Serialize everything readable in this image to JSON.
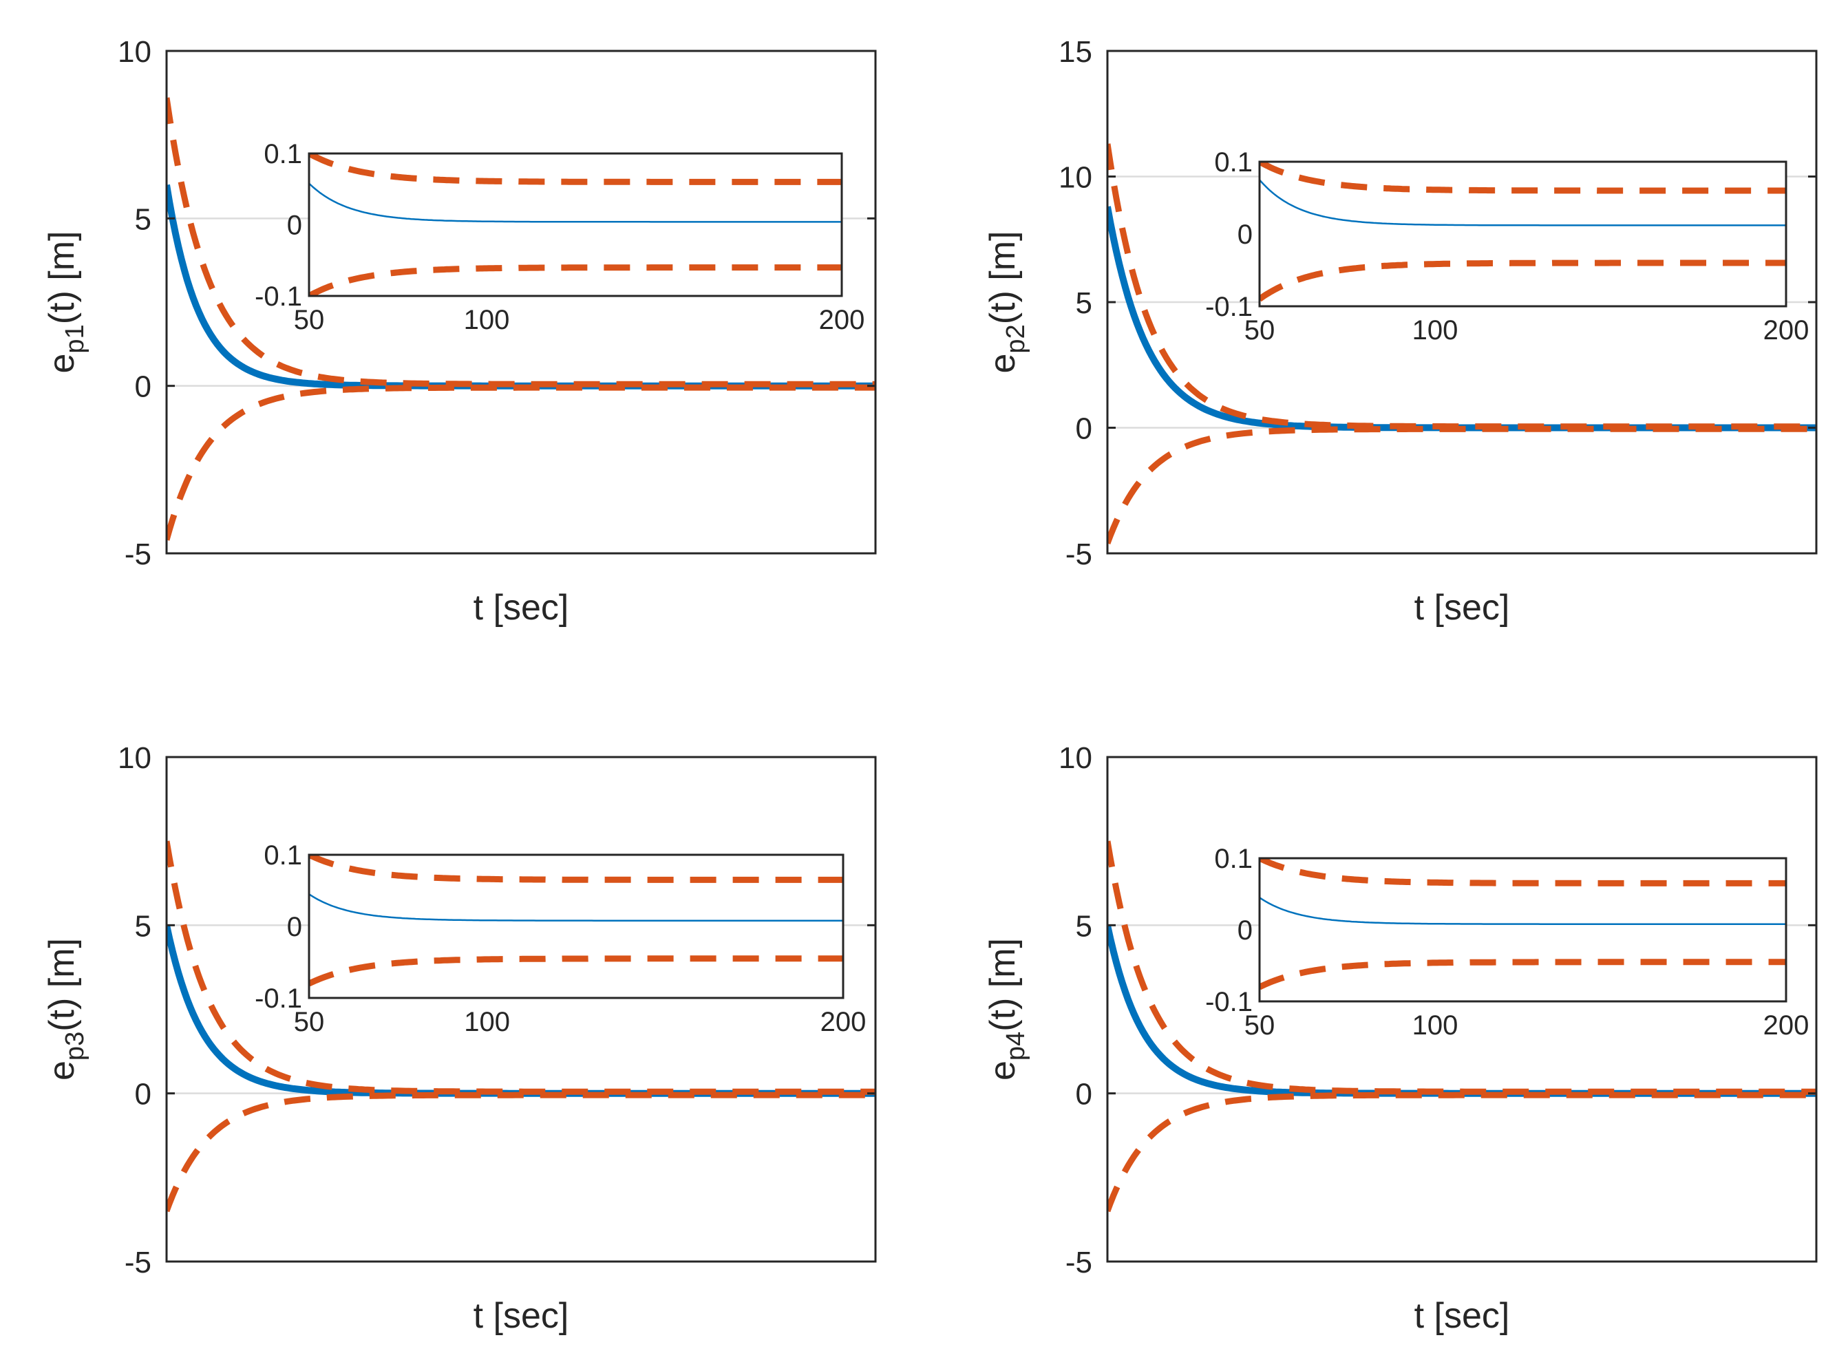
{
  "colors": {
    "actual": "#0072BD",
    "bound": "#D95319",
    "axis": "#262626",
    "grid": "#dcdcdc"
  },
  "chart_data": [
    {
      "type": "line",
      "name": "p1",
      "ylabel": {
        "main": "e",
        "sub": "p1",
        "rest": "(t) [m]"
      },
      "xlabel": "t [sec]",
      "xlim": [
        0,
        200
      ],
      "ylim": [
        -5,
        10
      ],
      "yticks": [
        -5,
        0,
        5,
        10
      ],
      "ytick_labels": [
        "-5",
        "0",
        "5",
        "10"
      ],
      "grid_y": [
        0,
        5
      ],
      "series": [
        {
          "name": "e_p1(t)",
          "kind": "actual",
          "initial": 6.0,
          "rate": 0.11
        },
        {
          "name": "upper bound",
          "kind": "bound",
          "initial": 8.6,
          "final": 0.05,
          "rate": 0.085
        },
        {
          "name": "lower bound",
          "kind": "bound",
          "initial": -4.6,
          "final": -0.05,
          "rate": 0.085
        }
      ],
      "inset": {
        "xlim": [
          50,
          200
        ],
        "ylim": [
          -0.1,
          0.1
        ],
        "xticks": [
          50,
          100,
          200
        ],
        "xtick_labels": [
          "50",
          "100",
          "200"
        ],
        "yticks": [
          -0.1,
          0,
          0.1
        ],
        "ytick_labels": [
          "-0.1",
          "0",
          "0.1"
        ],
        "actual": {
          "start": 0.058,
          "final": 0.004
        },
        "upper": {
          "start": 0.1,
          "final": 0.06
        },
        "lower": {
          "start": -0.1,
          "final": -0.06
        }
      }
    },
    {
      "type": "line",
      "name": "p2",
      "ylabel": {
        "main": "e",
        "sub": "p2",
        "rest": "(t) [m]"
      },
      "xlabel": "t [sec]",
      "xlim": [
        0,
        200
      ],
      "ylim": [
        -5,
        15
      ],
      "yticks": [
        -5,
        0,
        5,
        10,
        15
      ],
      "ytick_labels": [
        "-5",
        "0",
        "5",
        "10",
        "15"
      ],
      "grid_y": [
        0,
        5,
        10
      ],
      "series": [
        {
          "name": "e_p2(t)",
          "kind": "actual",
          "initial": 8.8,
          "rate": 0.09
        },
        {
          "name": "upper bound",
          "kind": "bound",
          "initial": 11.3,
          "final": 0.05,
          "rate": 0.085
        },
        {
          "name": "lower bound",
          "kind": "bound",
          "initial": -4.6,
          "final": -0.05,
          "rate": 0.085
        }
      ],
      "inset": {
        "xlim": [
          50,
          200
        ],
        "ylim": [
          -0.1,
          0.1
        ],
        "xticks": [
          50,
          100,
          200
        ],
        "xtick_labels": [
          "50",
          "100",
          "200"
        ],
        "yticks": [
          -0.1,
          0,
          0.1
        ],
        "ytick_labels": [
          "-0.1",
          "0",
          "0.1"
        ],
        "actual": {
          "start": 0.075,
          "final": 0.012
        },
        "upper": {
          "start": 0.1,
          "final": 0.06
        },
        "lower": {
          "start": -0.09,
          "final": -0.04
        }
      }
    },
    {
      "type": "line",
      "name": "p3",
      "ylabel": {
        "main": "e",
        "sub": "p3",
        "rest": "(t) [m]"
      },
      "xlabel": "t [sec]",
      "xlim": [
        0,
        200
      ],
      "ylim": [
        -5,
        10
      ],
      "yticks": [
        -5,
        0,
        5,
        10
      ],
      "ytick_labels": [
        "-5",
        "0",
        "5",
        "10"
      ],
      "grid_y": [
        0,
        5
      ],
      "series": [
        {
          "name": "e_p3(t)",
          "kind": "actual",
          "initial": 5.0,
          "rate": 0.1
        },
        {
          "name": "upper bound",
          "kind": "bound",
          "initial": 7.5,
          "final": 0.05,
          "rate": 0.085
        },
        {
          "name": "lower bound",
          "kind": "bound",
          "initial": -3.5,
          "final": -0.05,
          "rate": 0.085
        }
      ],
      "inset": {
        "xlim": [
          50,
          200
        ],
        "ylim": [
          -0.1,
          0.1
        ],
        "xticks": [
          50,
          100,
          200
        ],
        "xtick_labels": [
          "50",
          "100",
          "200"
        ],
        "yticks": [
          -0.1,
          0,
          0.1
        ],
        "ytick_labels": [
          "-0.1",
          "0",
          "0.1"
        ],
        "actual": {
          "start": 0.045,
          "final": 0.008
        },
        "upper": {
          "start": 0.1,
          "final": 0.065
        },
        "lower": {
          "start": -0.08,
          "final": -0.045
        }
      }
    },
    {
      "type": "line",
      "name": "p4",
      "ylabel": {
        "main": "e",
        "sub": "p4",
        "rest": "(t) [m]"
      },
      "xlabel": "t [sec]",
      "xlim": [
        0,
        200
      ],
      "ylim": [
        -5,
        10
      ],
      "yticks": [
        -5,
        0,
        5,
        10
      ],
      "ytick_labels": [
        "-5",
        "0",
        "5",
        "10"
      ],
      "grid_y": [
        0,
        5
      ],
      "series": [
        {
          "name": "e_p4(t)",
          "kind": "actual",
          "initial": 5.0,
          "rate": 0.1
        },
        {
          "name": "upper bound",
          "kind": "bound",
          "initial": 7.5,
          "final": 0.05,
          "rate": 0.085
        },
        {
          "name": "lower bound",
          "kind": "bound",
          "initial": -3.5,
          "final": -0.05,
          "rate": 0.085
        }
      ],
      "inset": {
        "xlim": [
          50,
          200
        ],
        "ylim": [
          -0.1,
          0.1
        ],
        "xticks": [
          50,
          100,
          200
        ],
        "xtick_labels": [
          "50",
          "100",
          "200"
        ],
        "yticks": [
          -0.1,
          0,
          0.1
        ],
        "ytick_labels": [
          "-0.1",
          "0",
          "0.1"
        ],
        "actual": {
          "start": 0.045,
          "final": 0.008
        },
        "upper": {
          "start": 0.1,
          "final": 0.065
        },
        "lower": {
          "start": -0.08,
          "final": -0.045
        }
      }
    }
  ]
}
